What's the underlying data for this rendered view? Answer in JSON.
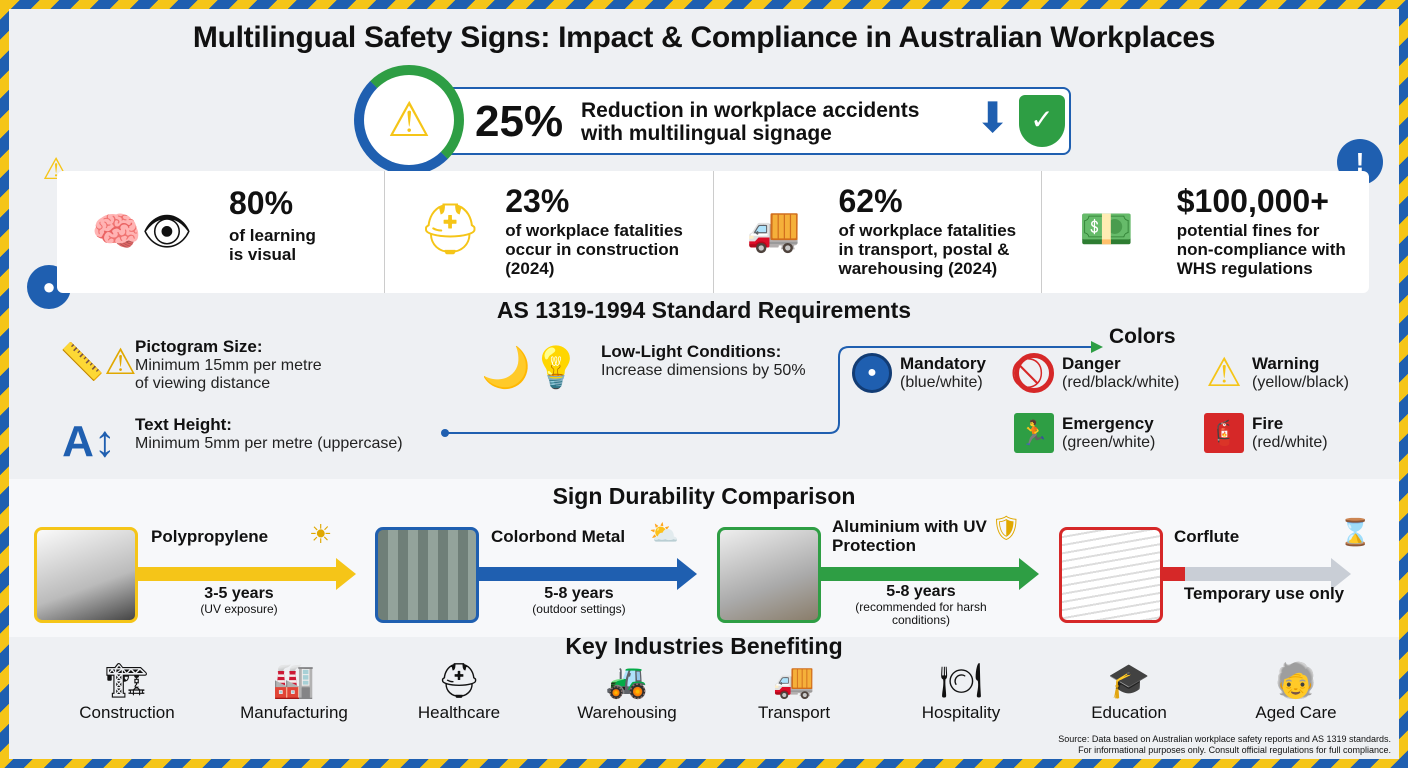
{
  "title": "Multilingual Safety Signs: Impact & Compliance in Australian Workplaces",
  "hero": {
    "value": "25%",
    "text_line1": "Reduction in workplace accidents",
    "text_line2": "with multilingual signage",
    "icons": [
      "warning-icon",
      "down-arrow-icon",
      "shield-check-icon"
    ]
  },
  "stats": [
    {
      "value": "80%",
      "lines": [
        "of learning",
        "is visual"
      ],
      "icon": "brain-eye-icon"
    },
    {
      "value": "23%",
      "lines": [
        "of workplace fatalities",
        "occur in construction",
        "(2024)"
      ],
      "icon": "hard-hat-icon"
    },
    {
      "value": "62%",
      "lines": [
        "of workplace fatalities",
        "in transport, postal &",
        "warehousing (2024)"
      ],
      "icon": "truck-warehouse-icon"
    },
    {
      "value": "$100,000+",
      "lines": [
        "potential fines for",
        "non-compliance with",
        "WHS regulations"
      ],
      "icon": "money-gavel-icon"
    }
  ],
  "standard": {
    "heading": "AS 1319-1994 Standard Requirements",
    "pictogram": {
      "label": "Pictogram Size:",
      "line1": "Minimum 15mm per metre",
      "line2": "of viewing distance"
    },
    "text_height": {
      "label": "Text Height:",
      "line1": "Minimum 5mm per metre (uppercase)"
    },
    "low_light": {
      "label": "Low-Light Conditions:",
      "line1": "Increase dimensions by 50%"
    },
    "colors_heading": "Colors",
    "colors": [
      {
        "name": "Mandatory",
        "desc": "(blue/white)",
        "color": "#1f5fb0"
      },
      {
        "name": "Danger",
        "desc": "(red/black/white)",
        "color": "#d62828"
      },
      {
        "name": "Warning",
        "desc": "(yellow/black)",
        "color": "#f5c518"
      },
      {
        "name": "Emergency",
        "desc": "(green/white)",
        "color": "#2e9e44"
      },
      {
        "name": "Fire",
        "desc": "(red/white)",
        "color": "#d62828"
      }
    ]
  },
  "durability": {
    "heading": "Sign Durability Comparison",
    "materials": [
      {
        "name": "Polypropylene",
        "years": "3-5 years",
        "note": "(UV exposure)",
        "color": "#f5c518"
      },
      {
        "name": "Colorbond Metal",
        "years": "5-8 years",
        "note": "(outdoor settings)",
        "color": "#1f5fb0"
      },
      {
        "name": "Aluminium with UV Protection",
        "years": "5-8 years",
        "note": "(recommended for harsh conditions)",
        "color": "#2e9e44"
      },
      {
        "name": "Corflute",
        "years": "Temporary use only",
        "note": "",
        "color": "#d62828"
      }
    ]
  },
  "industries": {
    "heading": "Key Industries Benefiting",
    "items": [
      "Construction",
      "Manufacturing",
      "Healthcare",
      "Warehousing",
      "Transport",
      "Hospitality",
      "Education",
      "Aged Care"
    ]
  },
  "source": {
    "line1": "Source: Data based on Australian workplace safety reports and AS 1319 standards.",
    "line2": "For informational purposes only. Consult official regulations for full compliance."
  }
}
